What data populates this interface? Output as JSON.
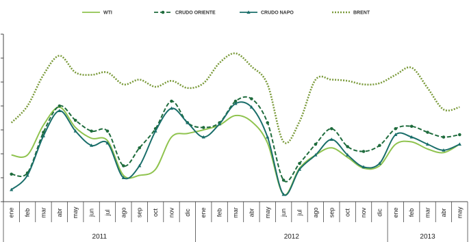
{
  "chart_data": {
    "type": "line",
    "title": "",
    "xlabel": "",
    "ylabel": "",
    "ylim": [
      0,
      7
    ],
    "grid": false,
    "legend_position": "top",
    "categories": [
      "ene",
      "feb",
      "mar",
      "abr",
      "may",
      "jun",
      "jul",
      "ago",
      "sep",
      "oct",
      "nov",
      "dic",
      "ene",
      "feb",
      "mar",
      "abr",
      "may",
      "jun",
      "jul",
      "ago",
      "sep",
      "oct",
      "nov",
      "dic",
      "ene",
      "feb",
      "mar",
      "abr",
      "may"
    ],
    "years": [
      {
        "label": "2011",
        "start": 0,
        "end": 11
      },
      {
        "label": "2012",
        "start": 12,
        "end": 23
      },
      {
        "label": "2013",
        "start": 24,
        "end": 28
      }
    ],
    "series": [
      {
        "name": "WTI",
        "color": "#8fc34e",
        "dash": "",
        "marker": "none",
        "values": [
          1.95,
          1.95,
          3.2,
          3.95,
          3.1,
          2.65,
          2.55,
          1.1,
          1.1,
          1.35,
          2.7,
          2.85,
          3.0,
          3.2,
          3.6,
          3.35,
          2.45,
          0.3,
          1.4,
          1.95,
          2.25,
          1.85,
          1.4,
          1.5,
          2.4,
          2.5,
          2.2,
          2.05,
          2.4
        ]
      },
      {
        "name": "CRUDO ORIENTE",
        "color": "#1e6b3c",
        "dash": "6,3",
        "marker": "circle",
        "values": [
          1.15,
          1.2,
          2.9,
          4.0,
          3.4,
          2.95,
          2.95,
          1.5,
          2.25,
          3.05,
          4.2,
          3.3,
          3.1,
          3.3,
          4.2,
          4.3,
          3.3,
          0.9,
          1.6,
          2.4,
          3.05,
          2.3,
          2.1,
          2.35,
          3.05,
          3.15,
          2.9,
          2.7,
          2.8
        ]
      },
      {
        "name": "CRUDO NAPO",
        "color": "#1a6e6a",
        "dash": "",
        "marker": "triangle",
        "values": [
          0.5,
          1.1,
          2.75,
          3.8,
          2.95,
          2.35,
          2.45,
          1.0,
          1.5,
          2.95,
          3.9,
          3.3,
          2.7,
          3.25,
          4.1,
          3.95,
          2.7,
          0.3,
          1.35,
          1.95,
          2.6,
          1.95,
          1.45,
          1.6,
          2.8,
          2.7,
          2.4,
          2.15,
          2.4
        ]
      },
      {
        "name": "BRENT",
        "color": "#7a9a3a",
        "dash": "2,2",
        "marker": "none",
        "values": [
          3.3,
          4.0,
          5.3,
          6.1,
          5.4,
          5.3,
          5.4,
          4.9,
          5.1,
          4.8,
          5.05,
          4.75,
          4.95,
          5.8,
          6.2,
          5.65,
          4.9,
          2.5,
          3.35,
          5.1,
          5.1,
          5.05,
          4.9,
          4.95,
          5.3,
          5.6,
          4.75,
          3.85,
          3.95
        ]
      }
    ]
  }
}
